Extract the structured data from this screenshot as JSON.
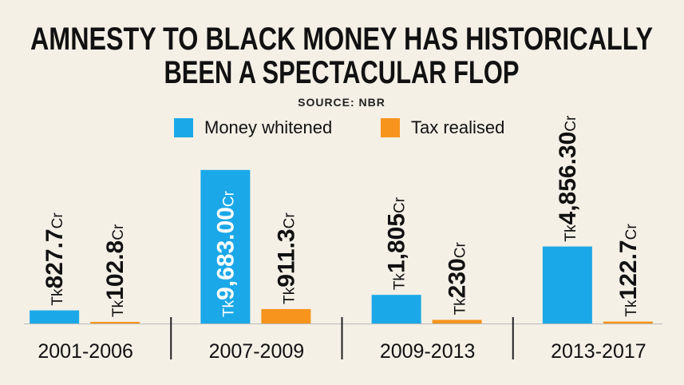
{
  "chart_data": {
    "type": "bar",
    "title_lines": [
      "AMNESTY TO BLACK MONEY HAS HISTORICALLY",
      "BEEN A SPECTACULAR FLOP"
    ],
    "source": "SOURCE: NBR",
    "categories": [
      "2001-2006",
      "2007-2009",
      "2009-2013",
      "2013-2017"
    ],
    "series": [
      {
        "name": "Money whitened",
        "color": "#1ba8e8",
        "values": [
          827.7,
          9683.0,
          1805,
          4856.3
        ],
        "value_labels": [
          "Tk827.7Cr",
          "Tk9,683.00Cr",
          "Tk1,805Cr",
          "Tk4,856.30Cr"
        ]
      },
      {
        "name": "Tax realised",
        "color": "#f7941d",
        "values": [
          102.8,
          911.3,
          230,
          122.7
        ],
        "value_labels": [
          "Tk102.8Cr",
          "Tk911.3Cr",
          "Tk230Cr",
          "Tk122.7Cr"
        ]
      }
    ],
    "ylim": [
      0,
      10000
    ]
  }
}
